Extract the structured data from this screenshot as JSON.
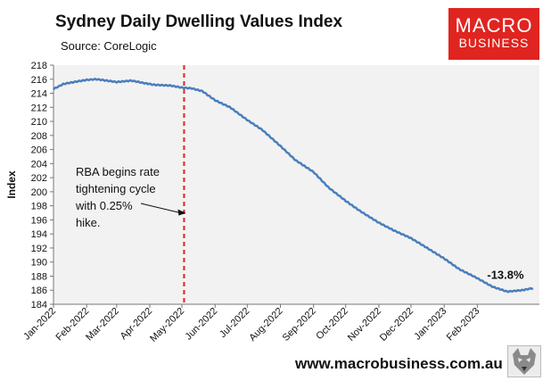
{
  "header": {
    "title": "Sydney Daily Dwelling Values Index",
    "source": "Source: CoreLogic"
  },
  "logo": {
    "line1": "MACRO",
    "line2": "BUSINESS"
  },
  "footer": {
    "url": "www.macrobusiness.com.au"
  },
  "colors": {
    "line": "#4a7ebb",
    "marker": "#e0241f",
    "plot_bg": "#f2f2f2",
    "logo_bg": "#e0241f"
  },
  "chart_data": {
    "type": "line",
    "title": "Sydney Daily Dwelling Values Index",
    "subtitle": "Source: CoreLogic",
    "ylabel": "Index",
    "xlabel": "",
    "ylim": [
      184,
      218
    ],
    "yticks": [
      184,
      186,
      188,
      190,
      192,
      194,
      196,
      198,
      200,
      202,
      204,
      206,
      208,
      210,
      212,
      214,
      216,
      218
    ],
    "xticks": [
      "Jan-2022",
      "Feb-2022",
      "Mar-2022",
      "Apr-2022",
      "May-2022",
      "Jun-2022",
      "Jul-2022",
      "Aug-2022",
      "Sep-2022",
      "Oct-2022",
      "Nov-2022",
      "Dec-2022",
      "Jan-2023",
      "Feb-2023"
    ],
    "grid": false,
    "series": [
      {
        "values": [
          {
            "x": "2022-01-01",
            "y": 214.6
          },
          {
            "x": "2022-01-10",
            "y": 215.3
          },
          {
            "x": "2022-01-20",
            "y": 215.6
          },
          {
            "x": "2022-02-01",
            "y": 215.9
          },
          {
            "x": "2022-02-10",
            "y": 216.0
          },
          {
            "x": "2022-02-20",
            "y": 215.8
          },
          {
            "x": "2022-03-01",
            "y": 215.6
          },
          {
            "x": "2022-03-15",
            "y": 215.8
          },
          {
            "x": "2022-03-25",
            "y": 215.5
          },
          {
            "x": "2022-04-05",
            "y": 215.2
          },
          {
            "x": "2022-04-20",
            "y": 215.1
          },
          {
            "x": "2022-05-01",
            "y": 214.8
          },
          {
            "x": "2022-05-10",
            "y": 214.7
          },
          {
            "x": "2022-05-20",
            "y": 214.3
          },
          {
            "x": "2022-06-01",
            "y": 213.0
          },
          {
            "x": "2022-06-15",
            "y": 212.0
          },
          {
            "x": "2022-07-01",
            "y": 210.2
          },
          {
            "x": "2022-07-15",
            "y": 208.8
          },
          {
            "x": "2022-08-01",
            "y": 206.5
          },
          {
            "x": "2022-08-15",
            "y": 204.5
          },
          {
            "x": "2022-09-01",
            "y": 202.8
          },
          {
            "x": "2022-09-15",
            "y": 200.6
          },
          {
            "x": "2022-10-01",
            "y": 198.7
          },
          {
            "x": "2022-10-15",
            "y": 197.2
          },
          {
            "x": "2022-11-01",
            "y": 195.6
          },
          {
            "x": "2022-11-15",
            "y": 194.5
          },
          {
            "x": "2022-12-01",
            "y": 193.4
          },
          {
            "x": "2022-12-15",
            "y": 192.1
          },
          {
            "x": "2023-01-01",
            "y": 190.5
          },
          {
            "x": "2023-01-15",
            "y": 189.0
          },
          {
            "x": "2023-02-01",
            "y": 187.7
          },
          {
            "x": "2023-02-15",
            "y": 186.5
          },
          {
            "x": "2023-03-01",
            "y": 185.8
          },
          {
            "x": "2023-03-15",
            "y": 186.0
          },
          {
            "x": "2023-03-25",
            "y": 186.3
          }
        ]
      }
    ],
    "marker": {
      "x": "2022-05-03",
      "style": "dashed vertical line"
    },
    "annotations": [
      {
        "lines": [
          "RBA begins rate",
          "tightening cycle",
          "with 0.25%",
          "hike."
        ],
        "arrow_to": {
          "x": "2022-05-03",
          "y": 198
        }
      },
      {
        "text": "-13.8%",
        "anchor": {
          "x": "2023-03-01",
          "y": 188
        }
      }
    ]
  }
}
